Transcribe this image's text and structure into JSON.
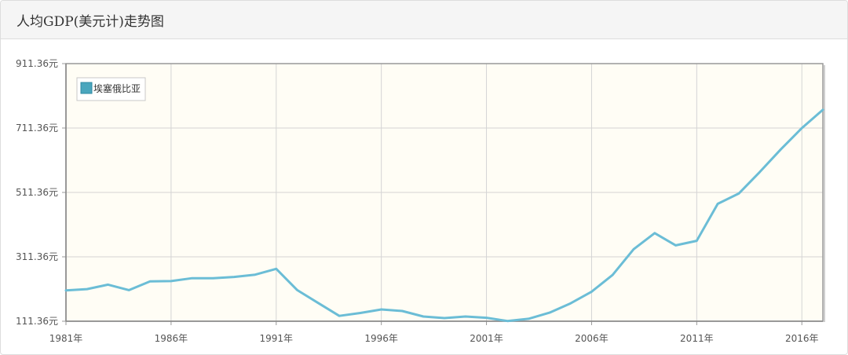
{
  "header": {
    "title": "人均GDP(美元计)走势图"
  },
  "colors": {
    "series": "#6bbdd6",
    "legend_swatch": "#4aa6bd",
    "plot_background": "#fffdf5",
    "grid": "#d4d4d4",
    "axis": "#999999"
  },
  "chart_data": {
    "type": "line",
    "title": "人均GDP(美元计)走势图",
    "xlabel": "",
    "ylabel": "",
    "x": [
      1981,
      1982,
      1983,
      1984,
      1985,
      1986,
      1987,
      1988,
      1989,
      1990,
      1991,
      1992,
      1993,
      1994,
      1995,
      1996,
      1997,
      1998,
      1999,
      2000,
      2001,
      2002,
      2003,
      2004,
      2005,
      2006,
      2007,
      2008,
      2009,
      2010,
      2011,
      2012,
      2013,
      2014,
      2015,
      2016,
      2017
    ],
    "series": [
      {
        "name": "埃塞俄比亚",
        "values": [
          207,
          211,
          225,
          208,
          235,
          236,
          245,
          245,
          249,
          256,
          274,
          208,
          168,
          128,
          137,
          148,
          143,
          126,
          121,
          126,
          122,
          112,
          119,
          138,
          167,
          203,
          255,
          335,
          385,
          347,
          361,
          476,
          508,
          575,
          645,
          711,
          768
        ]
      }
    ],
    "x_ticks": [
      {
        "value": 1981,
        "label": "1981年"
      },
      {
        "value": 1986,
        "label": "1986年"
      },
      {
        "value": 1991,
        "label": "1991年"
      },
      {
        "value": 1996,
        "label": "1996年"
      },
      {
        "value": 2001,
        "label": "2001年"
      },
      {
        "value": 2006,
        "label": "2006年"
      },
      {
        "value": 2011,
        "label": "2011年"
      },
      {
        "value": 2016,
        "label": "2016年"
      }
    ],
    "y_ticks": [
      {
        "value": 111.36,
        "label": "111.36元"
      },
      {
        "value": 311.36,
        "label": "311.36元"
      },
      {
        "value": 511.36,
        "label": "511.36元"
      },
      {
        "value": 711.36,
        "label": "711.36元"
      },
      {
        "value": 911.36,
        "label": "911.36元"
      }
    ],
    "xlim": [
      1981,
      2017
    ],
    "ylim": [
      111.36,
      911.36
    ],
    "grid": true,
    "legend": "top-left"
  }
}
